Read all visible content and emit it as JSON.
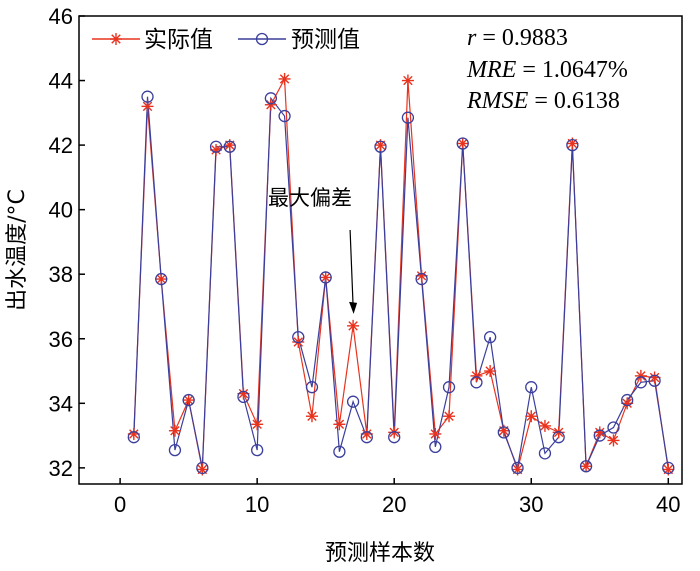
{
  "chart_data": {
    "type": "line",
    "xlabel": "预测样本数",
    "ylabel": "出水温度/°C",
    "xlim": [
      -3,
      41
    ],
    "ylim": [
      31.5,
      46
    ],
    "xticks": [
      "0",
      "10",
      "20",
      "30",
      "40"
    ],
    "xtick_values": [
      0,
      10,
      20,
      30,
      40
    ],
    "yticks": [
      "32",
      "34",
      "36",
      "38",
      "40",
      "42",
      "44",
      "46"
    ],
    "ytick_values": [
      32,
      34,
      36,
      38,
      40,
      42,
      44,
      46
    ],
    "legend_position": "top-left",
    "x": [
      1,
      2,
      3,
      4,
      5,
      6,
      7,
      8,
      9,
      10,
      11,
      12,
      13,
      14,
      15,
      16,
      17,
      18,
      19,
      20,
      21,
      22,
      23,
      24,
      25,
      26,
      27,
      28,
      29,
      30,
      31,
      32,
      33,
      34,
      35,
      36,
      37,
      38,
      39,
      40
    ],
    "series": [
      {
        "name": "实际值",
        "color": "#e8331e",
        "marker": "asterisk",
        "values": [
          33.05,
          43.2,
          37.85,
          33.15,
          34.1,
          31.95,
          41.85,
          42.0,
          34.3,
          33.35,
          43.25,
          44.05,
          35.9,
          33.6,
          37.9,
          33.35,
          36.4,
          33.05,
          42.0,
          33.1,
          44.0,
          37.95,
          33.05,
          33.6,
          42.05,
          34.85,
          35.0,
          33.15,
          31.95,
          33.6,
          33.3,
          33.1,
          42.05,
          32.05,
          33.1,
          32.85,
          34.0,
          34.85,
          34.8,
          31.95
        ]
      },
      {
        "name": "预测值",
        "color": "#3b3f9c",
        "marker": "circle",
        "values": [
          32.95,
          43.5,
          37.85,
          32.55,
          34.1,
          32.0,
          41.95,
          41.95,
          34.2,
          32.55,
          43.45,
          42.9,
          36.05,
          34.5,
          37.9,
          32.5,
          34.05,
          32.95,
          41.95,
          32.95,
          42.85,
          37.85,
          32.65,
          34.5,
          42.05,
          34.65,
          36.05,
          33.1,
          32.0,
          34.5,
          32.45,
          32.95,
          42.0,
          32.05,
          33.0,
          33.25,
          34.1,
          34.65,
          34.7,
          32.0
        ]
      }
    ],
    "stats": [
      {
        "name": "r",
        "value": " = 0.9883"
      },
      {
        "name": "MRE",
        "value": " = 1.0647%"
      },
      {
        "name": "RMSE",
        "value": " = 0.6138"
      }
    ],
    "annotation": {
      "text": "最大偏差",
      "target_x": 17,
      "target_y": 36.4
    }
  }
}
